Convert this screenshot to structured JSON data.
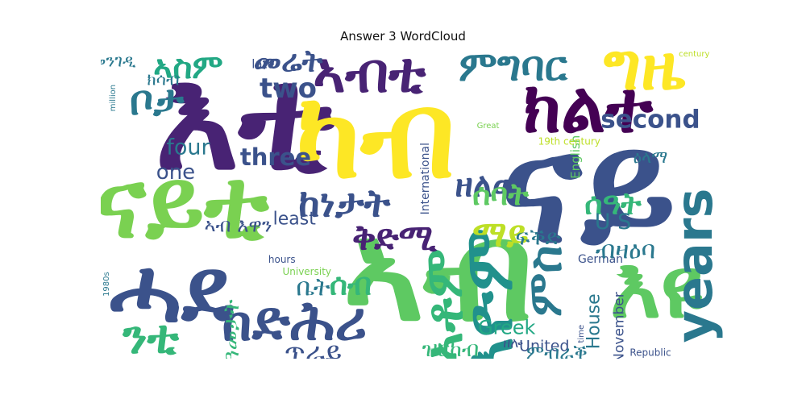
{
  "chart_data": {
    "type": "wordcloud",
    "title": "Answer 3 WordCloud",
    "words": [
      {
        "text": "ናይ",
        "weight": 100,
        "color": "#3b528b"
      },
      {
        "text": "እቲ",
        "weight": 92,
        "color": "#482374"
      },
      {
        "text": "ኣብ",
        "weight": 90,
        "color": "#5ec962"
      },
      {
        "text": "ካብ",
        "weight": 78,
        "color": "#fde725"
      },
      {
        "text": "ናይቲ",
        "weight": 62,
        "color": "#7ad151"
      },
      {
        "text": "ሓደ",
        "weight": 58,
        "color": "#3b528b"
      },
      {
        "text": "እዩ",
        "weight": 56,
        "color": "#5ec962"
      },
      {
        "text": "ክልተ",
        "weight": 46,
        "color": "#440154"
      },
      {
        "text": "እዮም",
        "weight": 44,
        "color": "#21918c"
      },
      {
        "text": "ግዜ",
        "weight": 42,
        "color": "#fde725"
      },
      {
        "text": "ኣብቲ",
        "weight": 40,
        "color": "#482374"
      },
      {
        "text": "ከድሕሪ",
        "weight": 40,
        "color": "#3b528b"
      },
      {
        "text": "ኣቶም",
        "weight": 38,
        "color": "#35b779"
      },
      {
        "text": "years",
        "weight": 36,
        "color": "#2a788e"
      },
      {
        "text": "ንቲ",
        "weight": 34,
        "color": "#35b779"
      },
      {
        "text": "ምግባር",
        "weight": 30,
        "color": "#2a788e"
      },
      {
        "text": "ምስ",
        "weight": 34,
        "color": "#2a788e"
      },
      {
        "text": "ቦታ",
        "weight": 30,
        "color": "#2a788e"
      },
      {
        "text": "ከነታት",
        "weight": 28,
        "color": "#3b528b"
      },
      {
        "text": "ቅድሚ",
        "weight": 26,
        "color": "#482374"
      },
      {
        "text": "ማይ",
        "weight": 26,
        "color": "#bddf26"
      },
      {
        "text": "ዘለዉ",
        "weight": 24,
        "color": "#3b528b"
      },
      {
        "text": "ኣስም",
        "weight": 24,
        "color": "#22a884"
      },
      {
        "text": "ሰዓት",
        "weight": 22,
        "color": "#35b779"
      },
      {
        "text": "መሬት",
        "weight": 22,
        "color": "#3b528b"
      },
      {
        "text": "ሰብ",
        "weight": 22,
        "color": "#35b779"
      },
      {
        "text": "ሰባት",
        "weight": 22,
        "color": "#5ec962"
      },
      {
        "text": "two",
        "weight": 20,
        "color": "#3b528b"
      },
      {
        "text": "second",
        "weight": 18,
        "color": "#3b528b"
      },
      {
        "text": "three",
        "weight": 17,
        "color": "#3b528b"
      },
      {
        "text": "four",
        "weight": 16,
        "color": "#2a788e"
      },
      {
        "text": "one",
        "weight": 15,
        "color": "#3b528b"
      },
      {
        "text": "Greek",
        "weight": 14,
        "color": "#22a884"
      },
      {
        "text": "House",
        "weight": 13,
        "color": "#2a788e"
      },
      {
        "text": "least",
        "weight": 13,
        "color": "#3b528b"
      },
      {
        "text": "U S",
        "weight": 16,
        "color": "#2a788e"
      },
      {
        "text": "United",
        "weight": 11,
        "color": "#3b528b"
      },
      {
        "text": "November",
        "weight": 10,
        "color": "#3b528b"
      },
      {
        "text": "English",
        "weight": 9,
        "color": "#5ec962"
      },
      {
        "text": "International",
        "weight": 8,
        "color": "#3b528b"
      },
      {
        "text": "German",
        "weight": 8,
        "color": "#3b528b"
      },
      {
        "text": "Republic",
        "weight": 7,
        "color": "#3b528b"
      },
      {
        "text": "hours",
        "weight": 7,
        "color": "#3b528b"
      },
      {
        "text": "University",
        "weight": 7,
        "color": "#7ad151"
      },
      {
        "text": "19th century",
        "weight": 7,
        "color": "#bddf26"
      },
      {
        "text": "century",
        "weight": 6,
        "color": "#bddf26"
      },
      {
        "text": "million",
        "weight": 6,
        "color": "#2a788e"
      },
      {
        "text": "Great",
        "weight": 6,
        "color": "#7ad151"
      },
      {
        "text": "late",
        "weight": 9,
        "color": "#3b528b"
      },
      {
        "text": "1980s",
        "weight": 6,
        "color": "#2a788e"
      },
      {
        "text": "time",
        "weight": 6,
        "color": "#3b528b"
      },
      {
        "text": "ጥራይ",
        "weight": 20,
        "color": "#3b528b"
      },
      {
        "text": "ምብራቕ",
        "weight": 14,
        "color": "#2a788e"
      },
      {
        "text": "ዝርከብ",
        "weight": 16,
        "color": "#35b779"
      },
      {
        "text": "ንዓመታት",
        "weight": 16,
        "color": "#35b779"
      },
      {
        "text": "ቤት",
        "weight": 18,
        "color": "#2a788e"
      },
      {
        "text": "ፍቕድ",
        "weight": 16,
        "color": "#2a788e"
      },
      {
        "text": "ብዛዕባ",
        "weight": 18,
        "color": "#2a788e"
      },
      {
        "text": "ክሳብ",
        "weight": 12,
        "color": "#2a788e"
      },
      {
        "text": "ዕላማ",
        "weight": 12,
        "color": "#2a788e"
      },
      {
        "text": "ኣብ እዋን",
        "weight": 14,
        "color": "#3b528b"
      },
      {
        "text": "መንገዲ",
        "weight": 12,
        "color": "#2a788e"
      },
      {
        "text": "ዘሎ",
        "weight": 10,
        "color": "#3b528b"
      }
    ]
  }
}
